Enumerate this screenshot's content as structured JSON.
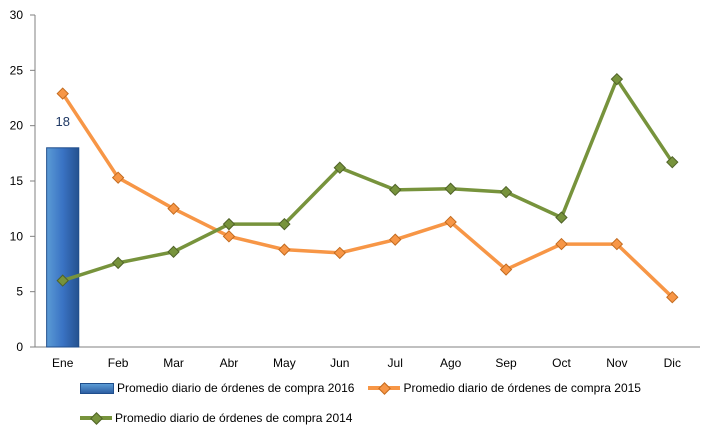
{
  "chart_data": {
    "type": "bar+line",
    "categories": [
      "Ene",
      "Feb",
      "Mar",
      "Abr",
      "May",
      "Jun",
      "Jul",
      "Ago",
      "Sep",
      "Oct",
      "Nov",
      "Dic"
    ],
    "ylim": [
      0,
      30
    ],
    "yticks": [
      0,
      5,
      10,
      15,
      20,
      25,
      30
    ],
    "grid": false,
    "legend_position": "bottom",
    "series": [
      {
        "name": "Promedio diario de órdenes de compra 2016",
        "type": "bar",
        "color": "#3a73c4",
        "values": [
          18,
          null,
          null,
          null,
          null,
          null,
          null,
          null,
          null,
          null,
          null,
          null
        ],
        "data_labels": [
          "18"
        ]
      },
      {
        "name": "Promedio diario de órdenes de compra 2015",
        "type": "line",
        "color": "#f79646",
        "values": [
          22.9,
          15.3,
          12.5,
          10.0,
          8.8,
          8.5,
          9.7,
          11.3,
          7.0,
          9.3,
          9.3,
          4.5
        ]
      },
      {
        "name": "Promedio diario de órdenes de compra 2014",
        "type": "line",
        "color": "#77933c",
        "values": [
          6.0,
          7.6,
          8.6,
          11.1,
          11.1,
          16.2,
          14.2,
          14.3,
          14.0,
          11.7,
          24.2,
          16.7
        ]
      }
    ]
  }
}
